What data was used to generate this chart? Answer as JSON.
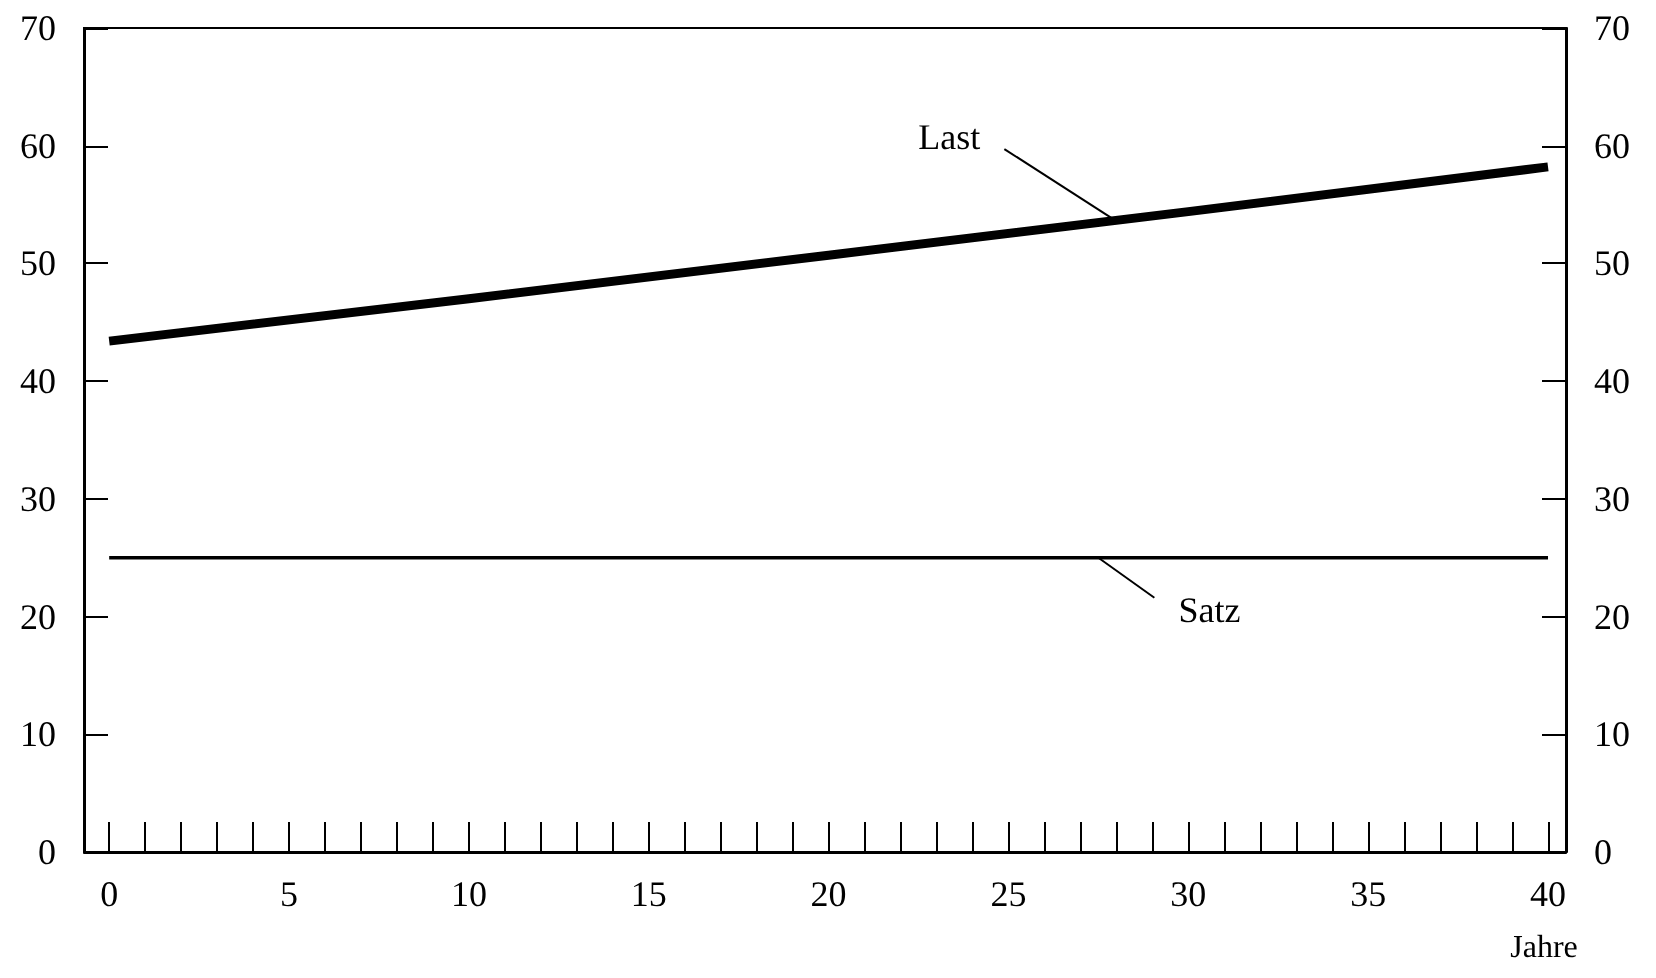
{
  "chart_data": {
    "type": "line",
    "xlabel": "Jahre",
    "series": [
      {
        "color": "#000000",
        "x": [
          0,
          10,
          20,
          30,
          40
        ],
        "values": [
          43.4,
          47,
          50.7,
          54.4,
          58.2
        ]
      },
      {
        "color": "#000000",
        "x": [
          0,
          40
        ],
        "values": [
          25,
          25
        ]
      }
    ],
    "annotations": [
      {
        "text": "Last",
        "x": 28,
        "y": 53.6
      },
      {
        "text": "Satz",
        "x": 27.5,
        "y": 25
      }
    ],
    "xlim": [
      -0.7,
      40.5
    ],
    "xticks": [
      0,
      {
        "value": 1,
        "label": null
      },
      {
        "value": 2,
        "label": null
      },
      {
        "value": 3,
        "label": null
      },
      {
        "value": 4,
        "label": null
      },
      5,
      {
        "value": 6,
        "label": null
      },
      {
        "value": 7,
        "label": null
      },
      {
        "value": 8,
        "label": null
      },
      {
        "value": 9,
        "label": null
      },
      10,
      {
        "value": 11,
        "label": null
      },
      {
        "value": 12,
        "label": null
      },
      {
        "value": 13,
        "label": null
      },
      {
        "value": 14,
        "label": null
      },
      15,
      {
        "value": 16,
        "label": null
      },
      {
        "value": 17,
        "label": null
      },
      {
        "value": 18,
        "label": null
      },
      {
        "value": 19,
        "label": null
      },
      20,
      {
        "value": 21,
        "label": null
      },
      {
        "value": 22,
        "label": null
      },
      {
        "value": 23,
        "label": null
      },
      {
        "value": 24,
        "label": null
      },
      25,
      {
        "value": 26,
        "label": null
      },
      {
        "value": 27,
        "label": null
      },
      {
        "value": 28,
        "label": null
      },
      {
        "value": 29,
        "label": null
      },
      30,
      {
        "value": 31,
        "label": null
      },
      {
        "value": 32,
        "label": null
      },
      {
        "value": 33,
        "label": null
      },
      {
        "value": 34,
        "label": null
      },
      35,
      {
        "value": 36,
        "label": null
      },
      {
        "value": 37,
        "label": null
      },
      {
        "value": 38,
        "label": null
      },
      {
        "value": 39,
        "label": null
      },
      40
    ],
    "ylim": [
      0,
      70
    ],
    "yticks": [
      0,
      10,
      20,
      30,
      40,
      50,
      60,
      70
    ],
    "y2lim": [
      0,
      70
    ],
    "y2ticks": [
      0,
      10,
      20,
      30,
      40,
      50,
      60,
      70
    ],
    "grid": false,
    "marker": "none",
    "line_style": "solid"
  }
}
